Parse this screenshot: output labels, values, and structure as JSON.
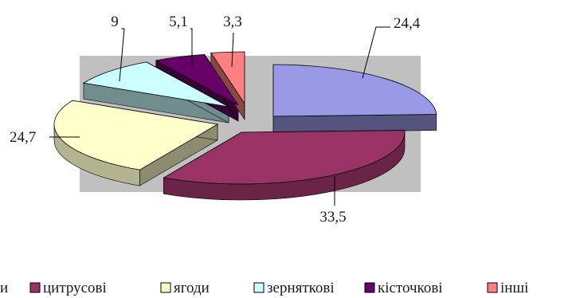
{
  "chart_data": {
    "type": "pie",
    "title": "",
    "variant": "exploded 3d pie",
    "slices": [
      {
        "label": "",
        "value": 24.4,
        "value_label": "24,4",
        "color": "#9999e6"
      },
      {
        "label": "цитрусові",
        "value": 33.5,
        "value_label": "33,5",
        "color": "#993366"
      },
      {
        "label": "ягоди",
        "value": 24.7,
        "value_label": "24,7",
        "color": "#ffffcc"
      },
      {
        "label": "зерняткові",
        "value": 9,
        "value_label": "9",
        "color": "#ccffff"
      },
      {
        "label": "кісточкові",
        "value": 5.1,
        "value_label": "5,1",
        "color": "#660066"
      },
      {
        "label": "інші",
        "value": 3.3,
        "value_label": "3,3",
        "color": "#ff8080"
      }
    ],
    "legend_position": "bottom",
    "legend_visible_text": [
      "и",
      "цитрусові",
      "ягоди",
      "зерняткові",
      "кісточкові",
      "інші"
    ],
    "plot_area_color": "#c0c0c0"
  }
}
